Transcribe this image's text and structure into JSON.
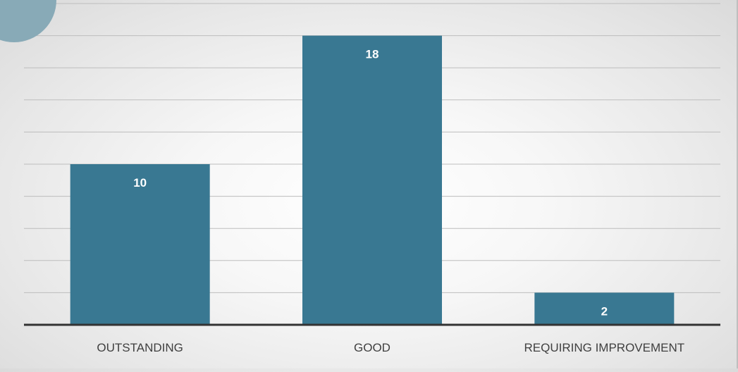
{
  "chart_data": {
    "type": "bar",
    "title": "",
    "xlabel": "",
    "ylabel": "",
    "categories": [
      "OUTSTANDING",
      "GOOD",
      "REQUIRING IMPROVEMENT"
    ],
    "values": [
      10,
      18,
      2
    ],
    "data_labels": [
      "10",
      "18",
      "2"
    ],
    "ylim": [
      0,
      20
    ],
    "grid": true,
    "legend": "none"
  },
  "colors": {
    "bar": "#397892",
    "gridline": "#bdbdbd",
    "baseline": "#333333",
    "data_label": "#ffffff",
    "category_label": "#404040",
    "corner_decoration": "#88aab7"
  }
}
